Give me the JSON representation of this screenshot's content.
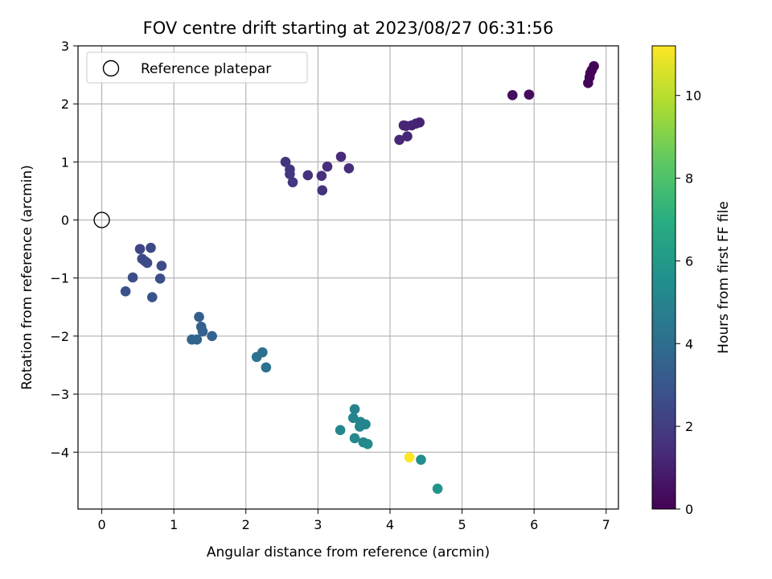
{
  "chart_data": {
    "type": "scatter",
    "title": "FOV centre drift starting at 2023/08/27 06:31:56",
    "xlabel": "Angular distance from reference (arcmin)",
    "ylabel": "Rotation from reference (arcmin)",
    "xlim": [
      -0.33,
      7.17
    ],
    "ylim": [
      -4.98,
      3.0
    ],
    "xticks": [
      "0",
      "1",
      "2",
      "3",
      "4",
      "5",
      "6",
      "7"
    ],
    "yticks": [
      "−4",
      "−3",
      "−2",
      "−1",
      "0",
      "1",
      "2",
      "3"
    ],
    "grid": true,
    "legend": {
      "position": "top-left",
      "label": "Reference platepar"
    },
    "reference_point": {
      "x": 0,
      "y": 0
    },
    "colorbar": {
      "label": "Hours from first FF file",
      "range": [
        0,
        11.2
      ],
      "ticks": [
        "0",
        "2",
        "4",
        "6",
        "8",
        "10"
      ],
      "colormap": "viridis"
    },
    "points": [
      {
        "x": 6.83,
        "y": 2.65,
        "t": 0.05
      },
      {
        "x": 6.8,
        "y": 2.58,
        "t": 0.08
      },
      {
        "x": 6.78,
        "y": 2.53,
        "t": 0.1
      },
      {
        "x": 6.77,
        "y": 2.46,
        "t": 0.12
      },
      {
        "x": 6.75,
        "y": 2.36,
        "t": 0.15
      },
      {
        "x": 5.93,
        "y": 2.16,
        "t": 0.35
      },
      {
        "x": 5.7,
        "y": 2.15,
        "t": 0.4
      },
      {
        "x": 4.41,
        "y": 1.68,
        "t": 1.1
      },
      {
        "x": 4.36,
        "y": 1.66,
        "t": 1.12
      },
      {
        "x": 4.3,
        "y": 1.63,
        "t": 1.15
      },
      {
        "x": 4.22,
        "y": 1.62,
        "t": 1.18
      },
      {
        "x": 4.19,
        "y": 1.63,
        "t": 1.2
      },
      {
        "x": 4.24,
        "y": 1.44,
        "t": 1.25
      },
      {
        "x": 4.13,
        "y": 1.38,
        "t": 1.3
      },
      {
        "x": 3.32,
        "y": 1.09,
        "t": 1.4
      },
      {
        "x": 3.43,
        "y": 0.89,
        "t": 1.45
      },
      {
        "x": 3.13,
        "y": 0.92,
        "t": 1.5
      },
      {
        "x": 3.05,
        "y": 0.76,
        "t": 1.55
      },
      {
        "x": 3.06,
        "y": 0.51,
        "t": 1.6
      },
      {
        "x": 2.86,
        "y": 0.77,
        "t": 1.65
      },
      {
        "x": 2.55,
        "y": 1.0,
        "t": 1.7
      },
      {
        "x": 2.61,
        "y": 0.87,
        "t": 1.75
      },
      {
        "x": 2.61,
        "y": 0.79,
        "t": 1.8
      },
      {
        "x": 2.65,
        "y": 0.65,
        "t": 1.85
      },
      {
        "x": 0.53,
        "y": -0.5,
        "t": 2.4
      },
      {
        "x": 0.68,
        "y": -0.48,
        "t": 2.45
      },
      {
        "x": 0.56,
        "y": -0.67,
        "t": 2.5
      },
      {
        "x": 0.6,
        "y": -0.71,
        "t": 2.55
      },
      {
        "x": 0.63,
        "y": -0.74,
        "t": 2.6
      },
      {
        "x": 0.83,
        "y": -0.79,
        "t": 2.65
      },
      {
        "x": 0.43,
        "y": -0.99,
        "t": 2.7
      },
      {
        "x": 0.81,
        "y": -1.01,
        "t": 2.75
      },
      {
        "x": 0.33,
        "y": -1.23,
        "t": 2.8
      },
      {
        "x": 0.7,
        "y": -1.33,
        "t": 2.85
      },
      {
        "x": 1.35,
        "y": -1.67,
        "t": 3.4
      },
      {
        "x": 1.38,
        "y": -1.84,
        "t": 3.45
      },
      {
        "x": 1.4,
        "y": -1.92,
        "t": 3.5
      },
      {
        "x": 1.53,
        "y": -2.0,
        "t": 3.55
      },
      {
        "x": 1.25,
        "y": -2.06,
        "t": 3.6
      },
      {
        "x": 1.32,
        "y": -2.06,
        "t": 3.65
      },
      {
        "x": 2.23,
        "y": -2.28,
        "t": 4.2
      },
      {
        "x": 2.15,
        "y": -2.36,
        "t": 4.25
      },
      {
        "x": 2.28,
        "y": -2.54,
        "t": 4.3
      },
      {
        "x": 3.51,
        "y": -3.26,
        "t": 5.0
      },
      {
        "x": 3.49,
        "y": -3.41,
        "t": 5.05
      },
      {
        "x": 3.59,
        "y": -3.48,
        "t": 5.1
      },
      {
        "x": 3.66,
        "y": -3.52,
        "t": 5.12
      },
      {
        "x": 3.58,
        "y": -3.56,
        "t": 5.15
      },
      {
        "x": 3.31,
        "y": -3.62,
        "t": 5.2
      },
      {
        "x": 3.51,
        "y": -3.76,
        "t": 5.25
      },
      {
        "x": 3.63,
        "y": -3.83,
        "t": 5.3
      },
      {
        "x": 3.69,
        "y": -3.86,
        "t": 5.35
      },
      {
        "x": 4.43,
        "y": -4.13,
        "t": 5.6
      },
      {
        "x": 4.66,
        "y": -4.63,
        "t": 5.8
      },
      {
        "x": 4.27,
        "y": -4.09,
        "t": 11.2
      }
    ]
  }
}
